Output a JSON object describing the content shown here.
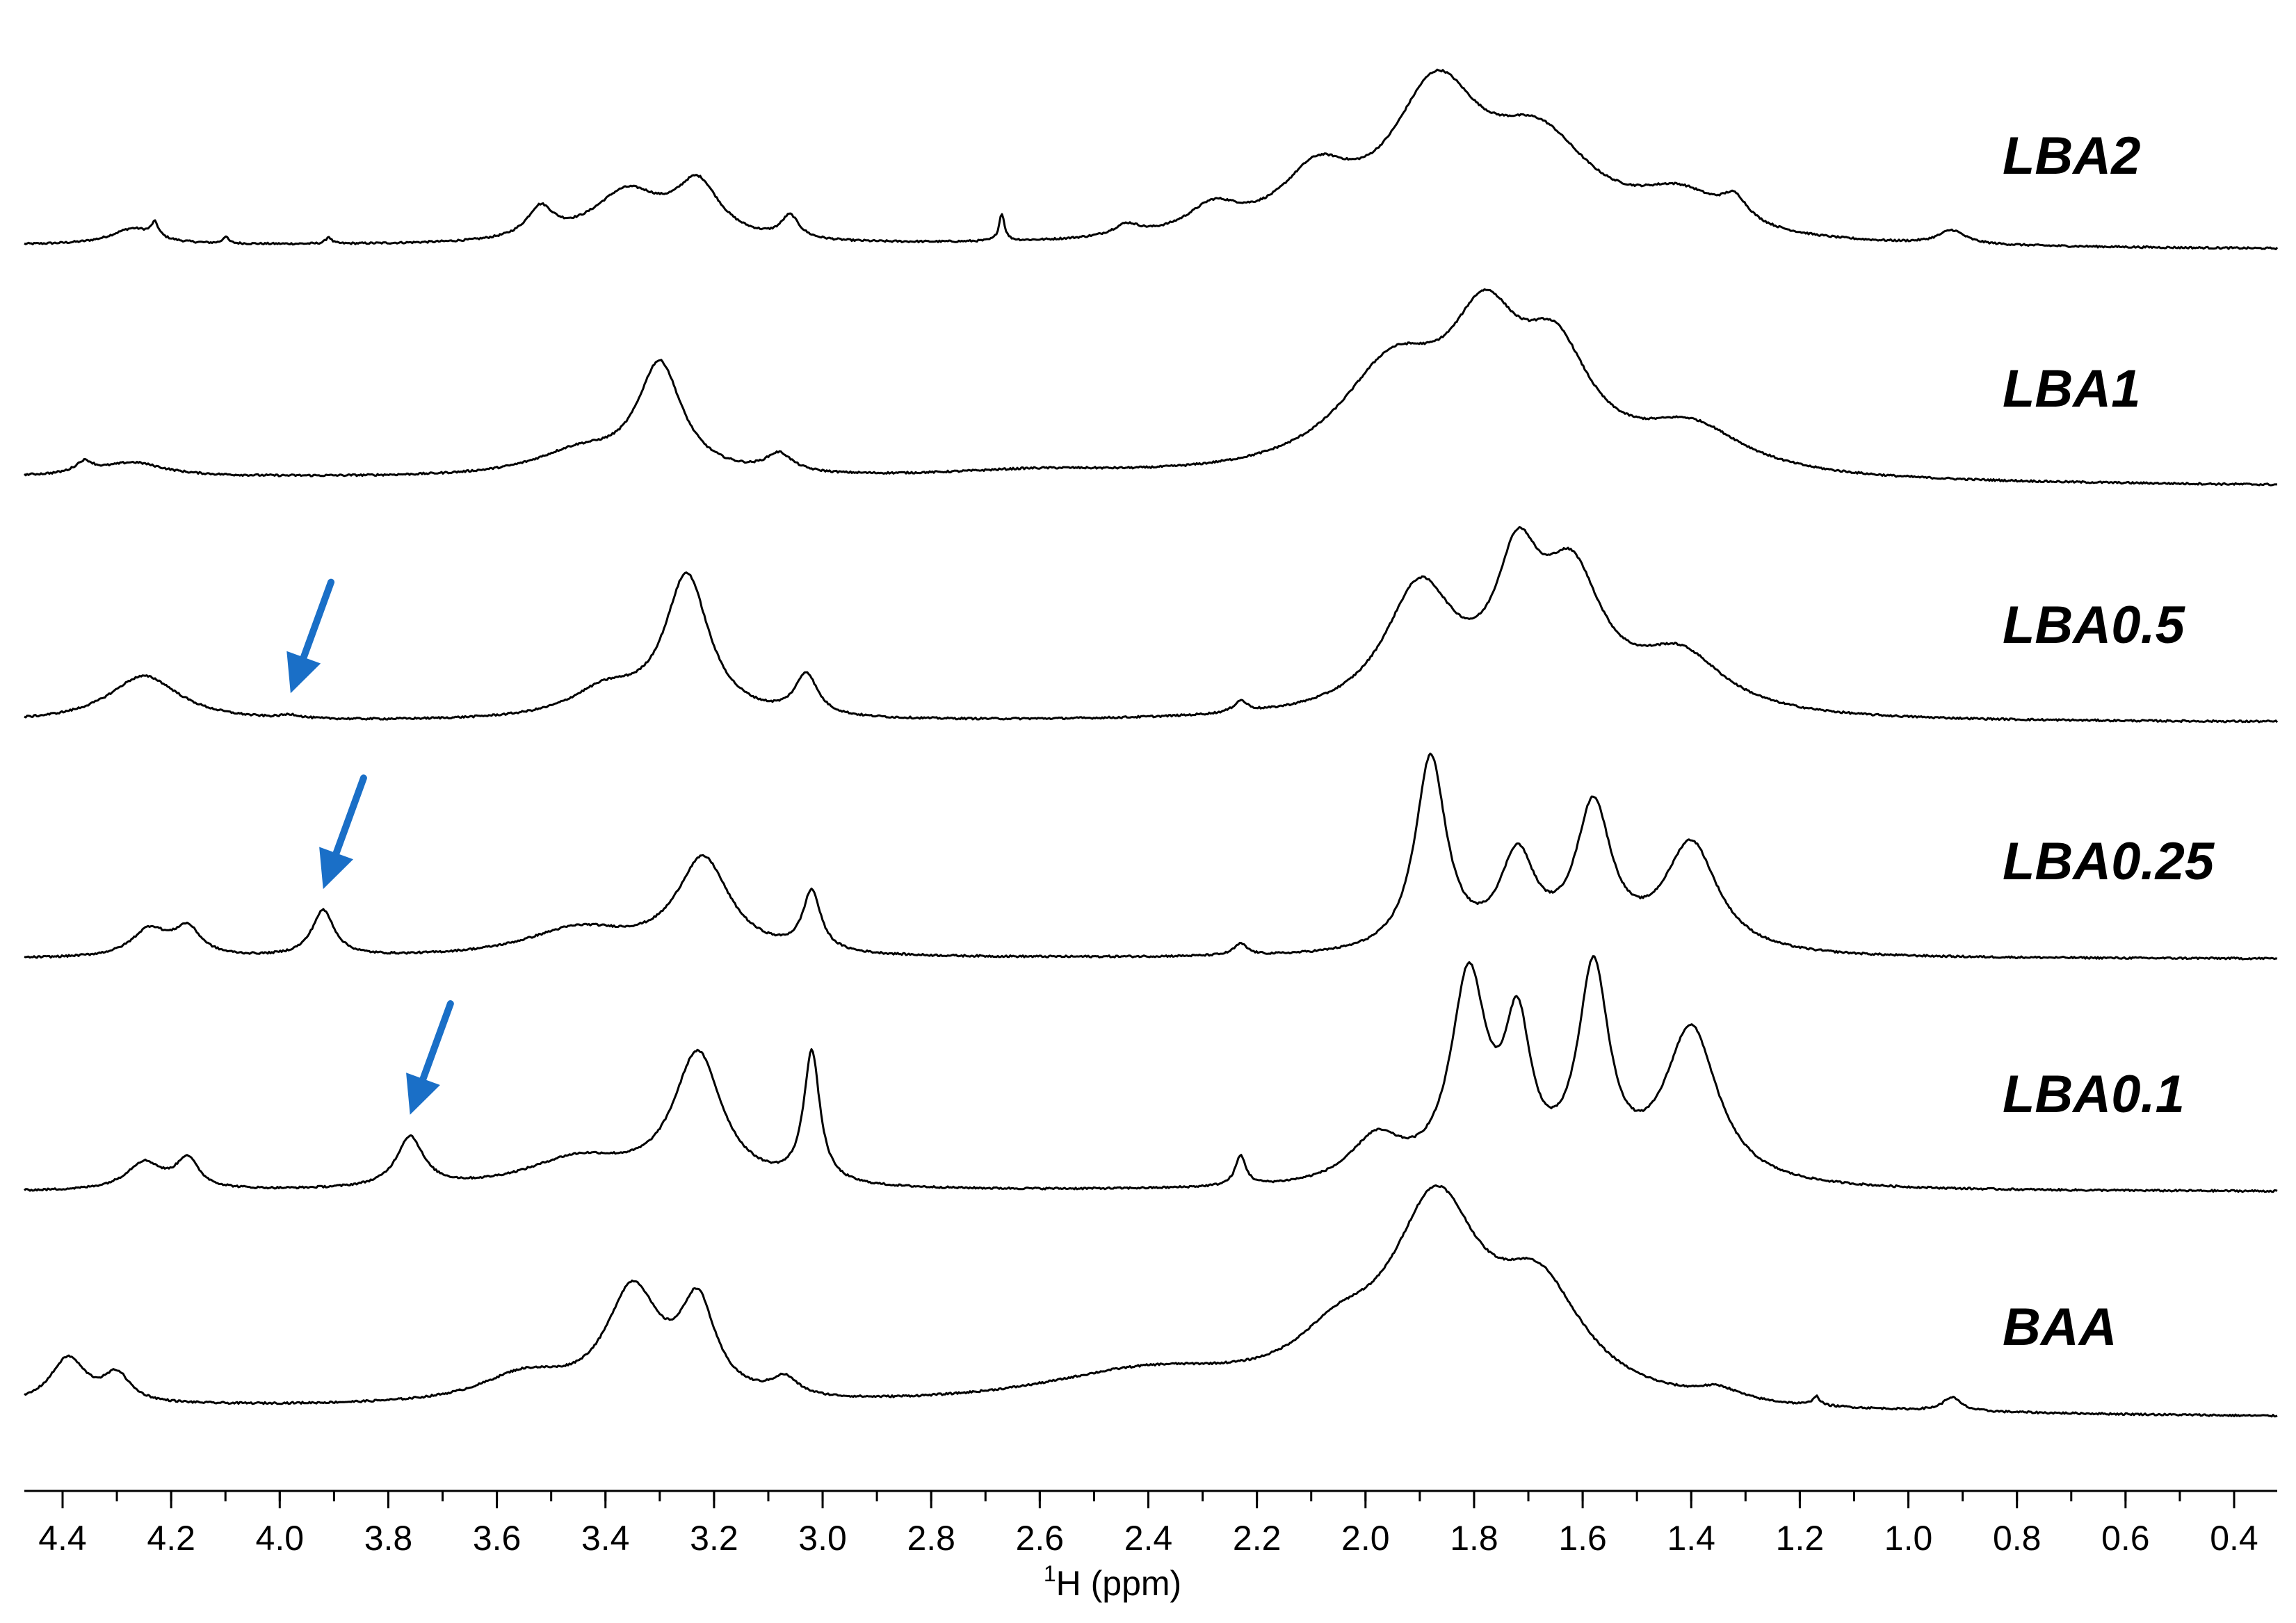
{
  "chart_data": {
    "type": "line",
    "layout": "stacked-offset",
    "x_axis": {
      "label_superscript": "1",
      "label_rest": "H (ppm)",
      "reversed": true,
      "xlim": [
        4.45,
        0.3
      ],
      "ticks": [
        "4.4",
        "4.2",
        "4.0",
        "3.8",
        "3.6",
        "3.4",
        "3.2",
        "3.0",
        "2.8",
        "2.6",
        "2.4",
        "2.2",
        "2.0",
        "1.8",
        "1.6",
        "1.4",
        "1.2",
        "1.0",
        "0.8",
        "0.6",
        "0.4"
      ]
    },
    "y_axis": {
      "visible": false,
      "units": "relative intensity (0-1)"
    },
    "grid": false,
    "series": [
      {
        "name": "LBA2",
        "baseline": [
          0.02,
          0.0
        ],
        "peaks": [
          [
            4.27,
            0.07,
            0.05
          ],
          [
            4.23,
            0.06,
            0.008
          ],
          [
            4.1,
            0.03,
            0.006
          ],
          [
            3.91,
            0.03,
            0.006
          ],
          [
            3.52,
            0.13,
            0.03
          ],
          [
            3.36,
            0.22,
            0.08
          ],
          [
            3.23,
            0.24,
            0.05
          ],
          [
            3.06,
            0.1,
            0.02
          ],
          [
            2.67,
            0.12,
            0.006
          ],
          [
            2.44,
            0.05,
            0.03
          ],
          [
            2.28,
            0.12,
            0.06
          ],
          [
            2.09,
            0.25,
            0.08
          ],
          [
            1.87,
            0.62,
            0.1
          ],
          [
            1.68,
            0.4,
            0.12
          ],
          [
            1.42,
            0.17,
            0.1
          ],
          [
            1.32,
            0.1,
            0.03
          ],
          [
            0.92,
            0.06,
            0.03
          ]
        ]
      },
      {
        "name": "LBA1",
        "baseline": [
          0.04,
          0.0
        ],
        "peaks": [
          [
            4.36,
            0.05,
            0.02
          ],
          [
            4.27,
            0.06,
            0.07
          ],
          [
            3.45,
            0.1,
            0.1
          ],
          [
            3.3,
            0.48,
            0.05
          ],
          [
            3.08,
            0.08,
            0.03
          ],
          [
            2.6,
            0.03,
            0.2
          ],
          [
            1.95,
            0.45,
            0.12
          ],
          [
            1.78,
            0.55,
            0.08
          ],
          [
            1.65,
            0.45,
            0.08
          ],
          [
            1.4,
            0.2,
            0.12
          ]
        ]
      },
      {
        "name": "LBA0.5",
        "baseline": [
          0.0,
          0.0
        ],
        "peaks": [
          [
            4.25,
            0.2,
            0.08
          ],
          [
            3.98,
            0.015,
            0.02
          ],
          [
            3.4,
            0.12,
            0.08
          ],
          [
            3.25,
            0.62,
            0.05
          ],
          [
            3.03,
            0.18,
            0.025
          ],
          [
            2.23,
            0.05,
            0.015
          ],
          [
            1.9,
            0.55,
            0.08
          ],
          [
            1.72,
            0.55,
            0.05
          ],
          [
            1.62,
            0.55,
            0.07
          ],
          [
            1.42,
            0.25,
            0.1
          ]
        ]
      },
      {
        "name": "LBA0.25",
        "baseline": [
          0.0,
          0.0
        ],
        "peaks": [
          [
            4.24,
            0.12,
            0.04
          ],
          [
            4.17,
            0.12,
            0.03
          ],
          [
            3.92,
            0.2,
            0.025
          ],
          [
            3.45,
            0.12,
            0.12
          ],
          [
            3.22,
            0.42,
            0.06
          ],
          [
            3.02,
            0.26,
            0.02
          ],
          [
            2.23,
            0.05,
            0.015
          ],
          [
            1.88,
            0.85,
            0.035
          ],
          [
            1.72,
            0.4,
            0.04
          ],
          [
            1.58,
            0.62,
            0.04
          ],
          [
            1.4,
            0.48,
            0.06
          ]
        ]
      },
      {
        "name": "LBA0.1",
        "baseline": [
          0.0,
          0.0
        ],
        "peaks": [
          [
            4.25,
            0.12,
            0.04
          ],
          [
            4.17,
            0.13,
            0.025
          ],
          [
            3.76,
            0.22,
            0.03
          ],
          [
            3.45,
            0.13,
            0.12
          ],
          [
            3.23,
            0.58,
            0.055
          ],
          [
            3.02,
            0.57,
            0.018
          ],
          [
            2.23,
            0.13,
            0.012
          ],
          [
            1.98,
            0.2,
            0.06
          ],
          [
            1.81,
            0.88,
            0.04
          ],
          [
            1.72,
            0.62,
            0.03
          ],
          [
            1.58,
            0.9,
            0.035
          ],
          [
            1.4,
            0.68,
            0.06
          ]
        ]
      },
      {
        "name": "BAA",
        "baseline": [
          0.05,
          0.0
        ],
        "peaks": [
          [
            4.39,
            0.2,
            0.04
          ],
          [
            4.3,
            0.12,
            0.03
          ],
          [
            3.55,
            0.12,
            0.1
          ],
          [
            3.35,
            0.48,
            0.06
          ],
          [
            3.23,
            0.4,
            0.04
          ],
          [
            3.07,
            0.08,
            0.03
          ],
          [
            2.4,
            0.15,
            0.25
          ],
          [
            2.05,
            0.2,
            0.1
          ],
          [
            1.87,
            0.82,
            0.1
          ],
          [
            1.68,
            0.45,
            0.1
          ],
          [
            1.35,
            0.05,
            0.05
          ],
          [
            1.17,
            0.04,
            0.008
          ],
          [
            0.92,
            0.06,
            0.02
          ]
        ]
      }
    ],
    "annotations": [
      {
        "type": "arrow",
        "color": "#1a6fc7",
        "series": "LBA0.5",
        "points_to_ppm": 3.98
      },
      {
        "type": "arrow",
        "color": "#1a6fc7",
        "series": "LBA0.25",
        "points_to_ppm": 3.92
      },
      {
        "type": "arrow",
        "color": "#1a6fc7",
        "series": "LBA0.1",
        "points_to_ppm": 3.76
      }
    ]
  }
}
